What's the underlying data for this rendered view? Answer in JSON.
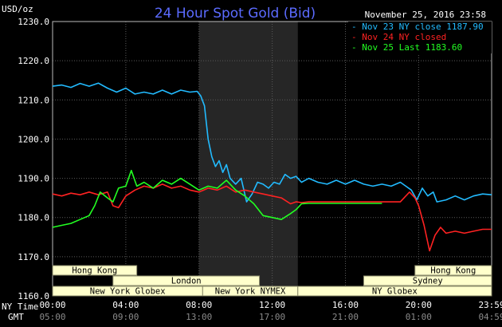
{
  "chart_data": {
    "type": "line",
    "title": "24 Hour Spot Gold (Bid)",
    "timestamp": "November 25, 2016 23:58",
    "ylabel": "USD/oz",
    "ylim": [
      1160,
      1230
    ],
    "yticks": [
      "1230.0",
      "1220.0",
      "1210.0",
      "1200.0",
      "1190.0",
      "1180.0",
      "1170.0",
      "1160.0"
    ],
    "x_time_labels": [
      "00:00",
      "04:00",
      "08:00",
      "12:00",
      "16:00",
      "20:00",
      "23:59"
    ],
    "x_gmt_labels": [
      "05:00",
      "09:00",
      "13:00",
      "17:00",
      "21:00",
      "01:00",
      "04:59"
    ],
    "row_labels": {
      "ny_time": "NY Time",
      "gmt": "GMT"
    },
    "grid": true,
    "legend_position": "top-right",
    "highlight_region_hours": [
      8.0,
      13.4
    ],
    "sessions": [
      {
        "name": "Hong Kong",
        "start": 0,
        "end": 4.6,
        "row": 0
      },
      {
        "name": "London",
        "start": 3.3,
        "end": 11.3,
        "row": 1
      },
      {
        "name": "New York Globex",
        "start": 0,
        "end": 8.2,
        "row": 2
      },
      {
        "name": "New York NYMEX",
        "start": 8.2,
        "end": 13.4,
        "row": 2
      },
      {
        "name": "NY Globex",
        "start": 13.4,
        "end": 23.99,
        "row": 2
      },
      {
        "name": "Hong Kong",
        "start": 19.8,
        "end": 23.99,
        "row": 0
      },
      {
        "name": "Sydney",
        "start": 17.0,
        "end": 23.99,
        "row": 1
      }
    ],
    "series": [
      {
        "name": "Nov 23 NY close 1187.90",
        "color": "#22bbff",
        "x": [
          0,
          0.5,
          1.0,
          1.5,
          2.0,
          2.5,
          3.0,
          3.5,
          4.0,
          4.5,
          5.0,
          5.5,
          6.0,
          6.5,
          7.0,
          7.5,
          7.9,
          8.1,
          8.3,
          8.5,
          8.7,
          8.9,
          9.1,
          9.3,
          9.5,
          9.7,
          10.0,
          10.3,
          10.6,
          10.9,
          11.2,
          11.5,
          11.8,
          12.1,
          12.4,
          12.7,
          13.0,
          13.3,
          13.6,
          14.0,
          14.5,
          15.0,
          15.5,
          16.0,
          16.5,
          17.0,
          17.5,
          18.0,
          18.5,
          19.0,
          19.3,
          19.6,
          19.9,
          20.2,
          20.5,
          20.8,
          21.0,
          21.5,
          22.0,
          22.5,
          23.0,
          23.5,
          23.99
        ],
        "values": [
          1213.5,
          1213.8,
          1213.2,
          1214.2,
          1213.5,
          1214.3,
          1213.0,
          1212.0,
          1213.0,
          1211.5,
          1212.0,
          1211.5,
          1212.5,
          1211.5,
          1212.5,
          1212.0,
          1212.2,
          1211.0,
          1208.5,
          1200.0,
          1195.5,
          1193.0,
          1194.5,
          1191.5,
          1193.5,
          1190.0,
          1188.5,
          1190.0,
          1184.0,
          1186.0,
          1189.0,
          1188.5,
          1187.5,
          1189.0,
          1188.5,
          1191.0,
          1190.0,
          1190.5,
          1189.0,
          1190.0,
          1189.0,
          1188.5,
          1189.5,
          1188.5,
          1189.5,
          1188.5,
          1188.0,
          1188.5,
          1188.0,
          1189.0,
          1188.0,
          1187.0,
          1184.5,
          1187.5,
          1185.5,
          1186.5,
          1184.0,
          1184.5,
          1185.5,
          1184.5,
          1185.5,
          1186.0,
          1185.8
        ]
      },
      {
        "name": "Nov 24 NY closed",
        "color": "#ff2222",
        "x": [
          0,
          0.5,
          1.0,
          1.5,
          2.0,
          2.5,
          3.0,
          3.3,
          3.6,
          4.0,
          4.5,
          5.0,
          5.5,
          6.0,
          6.5,
          7.0,
          7.5,
          8.0,
          8.5,
          9.0,
          9.5,
          10.0,
          10.5,
          11.0,
          11.5,
          12.0,
          12.5,
          13.0,
          13.3,
          13.6,
          14.0,
          15.0,
          16.0,
          17.0,
          18.0,
          19.0,
          19.5,
          19.8,
          20.0,
          20.3,
          20.6,
          20.9,
          21.2,
          21.5,
          22.0,
          22.5,
          23.0,
          23.5,
          23.99
        ],
        "values": [
          1186.0,
          1185.5,
          1186.2,
          1185.8,
          1186.5,
          1185.8,
          1186.5,
          1183.0,
          1182.5,
          1185.5,
          1187.0,
          1188.0,
          1187.5,
          1188.5,
          1187.5,
          1188.0,
          1187.0,
          1186.5,
          1187.5,
          1187.0,
          1188.0,
          1186.5,
          1187.0,
          1186.5,
          1186.0,
          1185.5,
          1185.0,
          1183.5,
          1184.0,
          1183.8,
          1184.0,
          1184.0,
          1184.0,
          1184.0,
          1184.0,
          1184.0,
          1186.5,
          1185.0,
          1183.0,
          1178.0,
          1171.5,
          1175.5,
          1177.5,
          1176.0,
          1176.5,
          1176.0,
          1176.5,
          1177.0,
          1177.0
        ]
      },
      {
        "name": "Nov 25 Last 1183.60",
        "color": "#22ff22",
        "x": [
          0,
          0.5,
          1.0,
          1.5,
          2.0,
          2.3,
          2.6,
          3.0,
          3.3,
          3.6,
          4.0,
          4.3,
          4.6,
          5.0,
          5.5,
          6.0,
          6.5,
          7.0,
          7.5,
          8.0,
          8.5,
          9.0,
          9.5,
          10.0,
          10.5,
          11.0,
          11.5,
          12.0,
          12.5,
          13.0,
          13.3,
          13.6,
          14.0,
          15.0,
          16.0,
          17.0,
          18.0
        ],
        "values": [
          1177.5,
          1178.0,
          1178.5,
          1179.5,
          1180.5,
          1183.0,
          1186.5,
          1185.0,
          1184.0,
          1187.5,
          1188.0,
          1192.0,
          1188.0,
          1189.0,
          1187.5,
          1189.5,
          1188.5,
          1190.0,
          1188.5,
          1187.0,
          1188.0,
          1187.5,
          1189.5,
          1187.0,
          1185.5,
          1183.5,
          1180.5,
          1180.0,
          1179.5,
          1181.0,
          1182.0,
          1183.5,
          1183.6,
          1183.6,
          1183.6,
          1183.6,
          1183.6
        ]
      }
    ]
  }
}
